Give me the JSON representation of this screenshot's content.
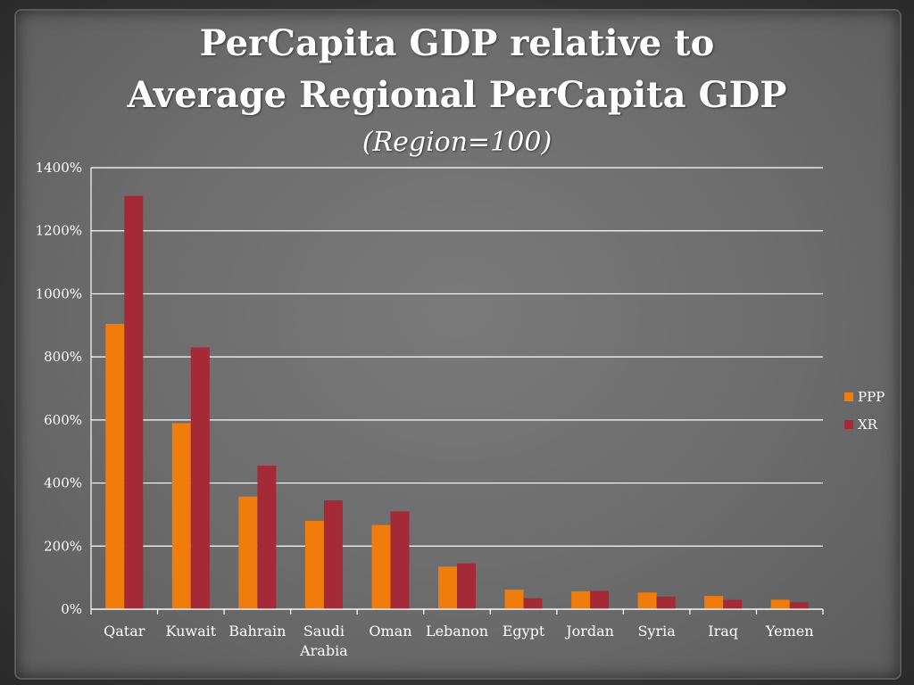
{
  "chart_data": {
    "type": "bar",
    "title_line1": "PerCapita GDP relative to",
    "title_line2": "Average Regional PerCapita GDP",
    "subtitle": "(Region=100)",
    "categories": [
      "Qatar",
      "Kuwait",
      "Bahrain",
      "Saudi Arabia",
      "Oman",
      "Lebanon",
      "Egypt",
      "Jordan",
      "Syria",
      "Iraq",
      "Yemen"
    ],
    "category_lines": [
      [
        "Qatar"
      ],
      [
        "Kuwait"
      ],
      [
        "Bahrain"
      ],
      [
        "Saudi",
        "Arabia"
      ],
      [
        "Oman"
      ],
      [
        "Lebanon"
      ],
      [
        "Egypt"
      ],
      [
        "Jordan"
      ],
      [
        "Syria"
      ],
      [
        "Iraq"
      ],
      [
        "Yemen"
      ]
    ],
    "series": [
      {
        "name": "PPP",
        "color": "#f07c0c",
        "values": [
          905,
          590,
          357,
          280,
          267,
          135,
          62,
          57,
          53,
          42,
          30
        ]
      },
      {
        "name": "XR",
        "color": "#a52a38",
        "values": [
          1310,
          830,
          455,
          345,
          310,
          145,
          35,
          58,
          40,
          30,
          22
        ]
      }
    ],
    "ylim": [
      0,
      1400
    ],
    "yticks": [
      0,
      200,
      400,
      600,
      800,
      1000,
      1200,
      1400
    ],
    "ytick_suffix": "%",
    "grid": true,
    "legend_position": "right"
  }
}
